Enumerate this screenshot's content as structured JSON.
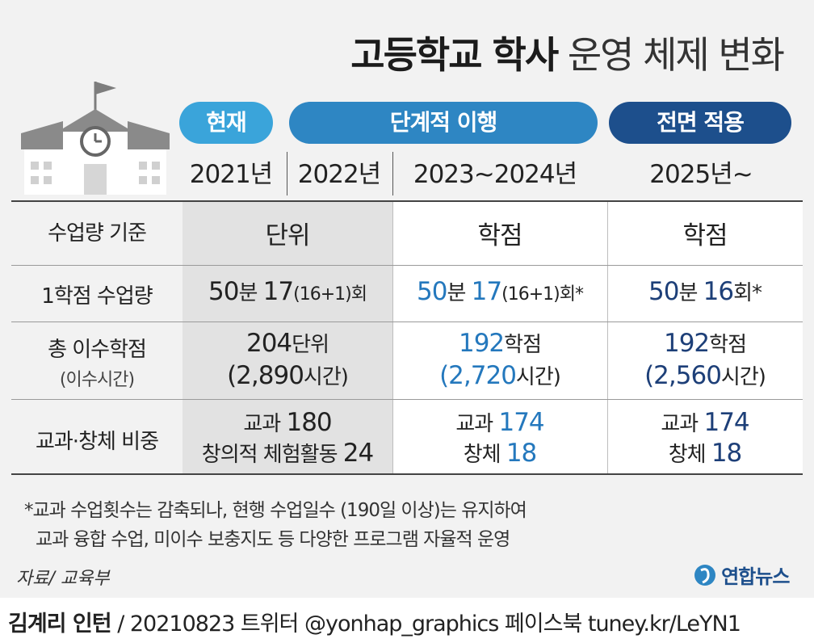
{
  "title_bold": "고등학교 학사",
  "title_light": "운영 체제 변화",
  "phases": {
    "current": "현재",
    "phased": "단계적 이행",
    "full": "전면 적용"
  },
  "years": [
    "2021년",
    "2022년",
    "2023~2024년",
    "2025년~"
  ],
  "rows": {
    "standard": {
      "label": "수업량 기준",
      "current": "단위",
      "phased": "학점",
      "full": "학점"
    },
    "per_credit": {
      "label": "1학점 수업량",
      "current": {
        "n1": "50",
        "u1": "분 ",
        "n2": "17",
        "u2": "(16+1)회"
      },
      "phased": {
        "n1": "50",
        "u1": "분 ",
        "n2": "17",
        "u2": "(16+1)회*"
      },
      "full": {
        "n1": "50",
        "u1": "분 ",
        "n2": "16",
        "u2": "회*"
      }
    },
    "total": {
      "label": "총 이수학점",
      "sublabel": "(이수시간)",
      "current": {
        "n": "204",
        "u": "단위",
        "hn": "(2,890",
        "hu": "시간)"
      },
      "phased": {
        "n": "192",
        "u": "학점",
        "hn": "(2,720",
        "hu": "시간)"
      },
      "full": {
        "n": "192",
        "u": "학점",
        "hn": "(2,560",
        "hu": "시간)"
      }
    },
    "ratio": {
      "label": "교과·창체 비중",
      "current": {
        "l1": "교과 ",
        "n1": "180",
        "l2": "창의적 체험활동 ",
        "n2": "24"
      },
      "phased": {
        "l1": "교과 ",
        "n1": "174",
        "l2": "창체 ",
        "n2": "18"
      },
      "full": {
        "l1": "교과 ",
        "n1": "174",
        "l2": "창체 ",
        "n2": "18"
      }
    }
  },
  "notes": [
    "*교과 수업횟수는 감축되나, 현행 수업일수 (190일 이상)는 유지하여",
    "교과 융합 수업, 미이수 보충지도 등 다양한 프로그램 자율적 운영"
  ],
  "source": "자료/ 교육부",
  "brand": "연합뉴스",
  "credit_bold": "김계리 인턴",
  "credit_rest": " / 20210823 트위터 @yonhap_graphics  페이스북 tuney.kr/LeYN1",
  "colors": {
    "current": "#3aa4da",
    "phased": "#2e86c3",
    "full": "#1d4f8c",
    "value_blue": "#2478bd",
    "value_navy": "#1d3f78",
    "current_col_bg": "#e2e2e2"
  },
  "chart_data": {
    "type": "table",
    "title": "고등학교 학사 운영 체제 변화",
    "columns": [
      "현재 2021년 · 2022년",
      "단계적 이행 2023~2024년",
      "전면 적용 2025년~"
    ],
    "rows": [
      {
        "label": "수업량 기준",
        "values": [
          "단위",
          "학점",
          "학점"
        ]
      },
      {
        "label": "1학점 수업량",
        "values": [
          "50분 17(16+1)회",
          "50분 17(16+1)회*",
          "50분 16회*"
        ]
      },
      {
        "label": "총 이수학점 (이수시간)",
        "values": [
          "204단위 (2,890시간)",
          "192학점 (2,720시간)",
          "192학점 (2,560시간)"
        ]
      },
      {
        "label": "교과·창체 비중",
        "values": [
          "교과 180 창의적 체험활동 24",
          "교과 174 창체 18",
          "교과 174 창체 18"
        ]
      }
    ]
  }
}
